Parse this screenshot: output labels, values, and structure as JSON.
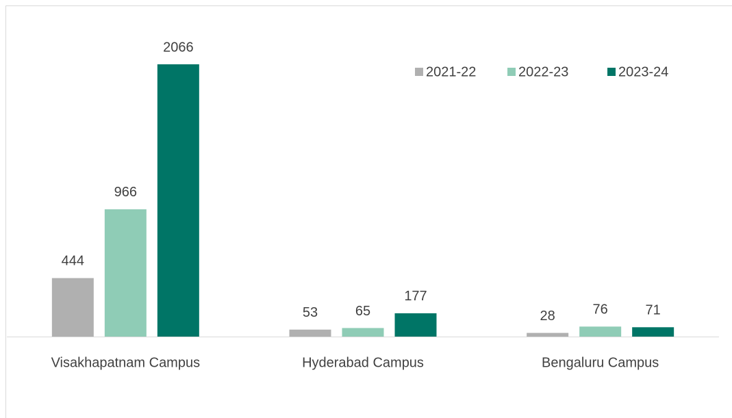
{
  "chart_data": {
    "type": "bar",
    "categories": [
      "Visakhapatnam Campus",
      "Hyderabad Campus",
      "Bengaluru Campus"
    ],
    "series": [
      {
        "name": "2021-22",
        "color": "#b0b0b0",
        "values": [
          444,
          53,
          28
        ]
      },
      {
        "name": "2022-23",
        "color": "#8fccb6",
        "values": [
          966,
          65,
          76
        ]
      },
      {
        "name": "2023-24",
        "color": "#007566",
        "values": [
          2066,
          177,
          71
        ]
      }
    ],
    "legend": "top-right"
  }
}
